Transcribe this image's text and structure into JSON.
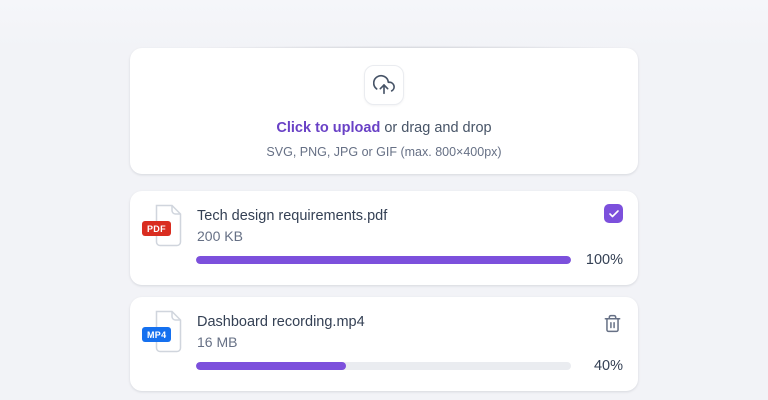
{
  "colors": {
    "page_bg": "#F2F3F7",
    "accent_purple": "#7C50DC",
    "link_purple": "#6941C6",
    "pdf_badge_red": "#D92D20",
    "mp4_badge_blue": "#1570EF",
    "track_gray": "#EAECF0",
    "text_primary": "#344054",
    "text_secondary": "#667085"
  },
  "dropzone": {
    "icon": "upload-cloud-icon",
    "cta": "Click to upload",
    "cta_suffix": " or drag and drop",
    "hint": "SVG, PNG, JPG or GIF (max. 800×400px)"
  },
  "files": [
    {
      "name": "Tech design requirements.pdf",
      "size": "200 KB",
      "type_badge": "PDF",
      "badge_color": "#D92D20",
      "progress_percent": 100,
      "progress_label": "100%",
      "control": "checkbox-checked"
    },
    {
      "name": "Dashboard recording.mp4",
      "size": "16 MB",
      "type_badge": "MP4",
      "badge_color": "#1570EF",
      "progress_percent": 40,
      "progress_label": "40%",
      "control": "delete"
    }
  ]
}
